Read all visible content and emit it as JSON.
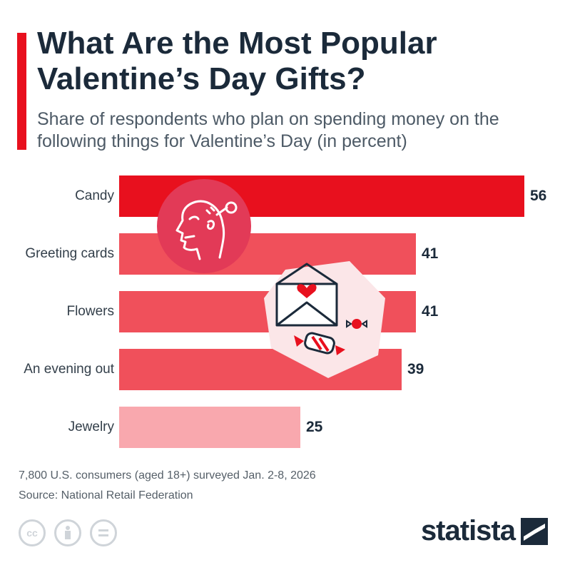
{
  "header": {
    "title": "What Are the Most Popular Valentine’s Day Gifts?",
    "subtitle": "Share of respondents who plan on spending money on the following things for Valentine’s Day (in percent)"
  },
  "chart_data": {
    "type": "bar",
    "orientation": "horizontal",
    "categories": [
      "Candy",
      "Greeting cards",
      "Flowers",
      "An evening out",
      "Jewelry"
    ],
    "values": [
      56,
      41,
      41,
      39,
      25
    ],
    "unit": "%",
    "title": "What Are the Most Popular Valentine’s Day Gifts?",
    "xlabel": "",
    "ylabel": "",
    "xlim": [
      0,
      56
    ],
    "grid": false,
    "legend": "none",
    "bar_colors": [
      "#e8101e",
      "#f0505b",
      "#f0505b",
      "#f0505b",
      "#f9a8ae"
    ]
  },
  "footer": {
    "note": "7,800 U.S. consumers (aged 18+) surveyed Jan. 2-8, 2026",
    "source": "Source: National Retail Federation"
  },
  "brand": {
    "name": "statista"
  },
  "icons": {
    "frustrated_head": "frustrated-head-icon",
    "envelope": "envelope-heart-icon",
    "candy": "candy-icon",
    "license": [
      "cc-icon",
      "attribution-icon",
      "no-derivatives-icon"
    ]
  }
}
